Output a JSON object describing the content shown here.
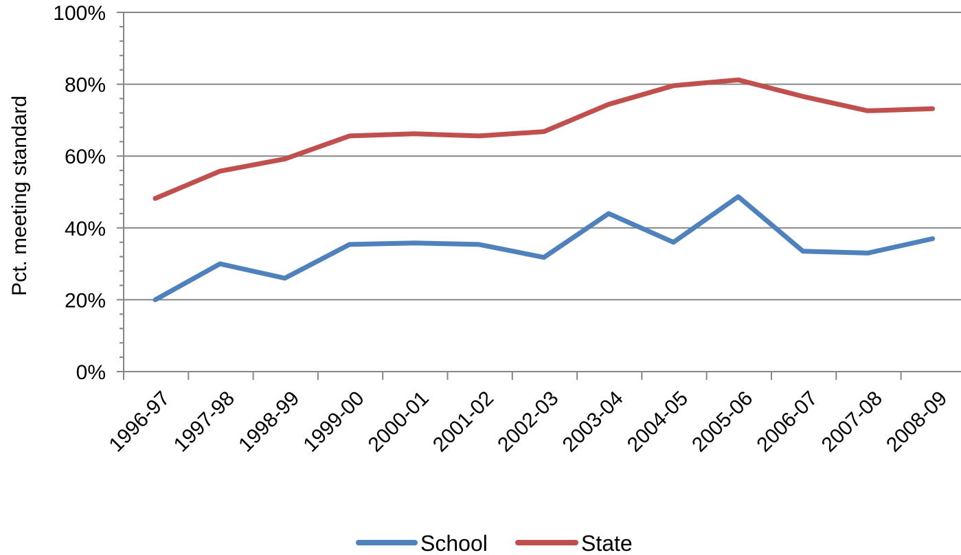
{
  "chart_data": {
    "type": "line",
    "title": "",
    "xlabel": "",
    "ylabel": "Pct. meeting standard",
    "ylim": [
      0,
      100
    ],
    "yticks": [
      "0%",
      "20%",
      "40%",
      "60%",
      "80%",
      "100%"
    ],
    "ytick_values": [
      0,
      20,
      40,
      60,
      80,
      100
    ],
    "categories": [
      "1996-97",
      "1997-98",
      "1998-99",
      "1999-00",
      "2000-01",
      "2001-02",
      "2002-03",
      "2003-04",
      "2004-05",
      "2005-06",
      "2006-07",
      "2007-08",
      "2008-09"
    ],
    "grid": true,
    "legend_position": "bottom",
    "series": [
      {
        "name": "School",
        "color": "#4f81bd",
        "values": [
          20,
          30,
          26,
          35.4,
          35.8,
          35.4,
          31.8,
          44,
          36,
          48.7,
          33.5,
          33,
          37
        ]
      },
      {
        "name": "State",
        "color": "#c0504d",
        "values": [
          48.2,
          55.8,
          59.2,
          65.6,
          66.2,
          65.6,
          66.8,
          74.4,
          79.6,
          81.2,
          76.6,
          72.6,
          73.2
        ]
      }
    ]
  }
}
